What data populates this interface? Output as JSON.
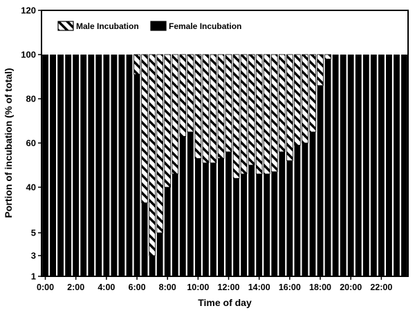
{
  "chart_data": {
    "type": "bar",
    "stacked": true,
    "percent_stacked": true,
    "title": "",
    "xlabel": "Time of day",
    "ylabel": "Portion of incubation (% of total)",
    "ylim": [
      1,
      120
    ],
    "y_ticks": [
      "1",
      "3",
      "5",
      "40",
      "60",
      "80",
      "100",
      "120"
    ],
    "x_ticks": [
      "0:00",
      "2:00",
      "4:00",
      "6:00",
      "8:00",
      "10:00",
      "12:00",
      "14:00",
      "16:00",
      "18:00",
      "20:00",
      "22:00"
    ],
    "grid": false,
    "legend_position": "top-left",
    "x": [
      "0:00",
      "0:30",
      "1:00",
      "1:30",
      "2:00",
      "2:30",
      "3:00",
      "3:30",
      "4:00",
      "4:30",
      "5:00",
      "5:30",
      "6:00",
      "6:30",
      "7:00",
      "7:30",
      "8:00",
      "8:30",
      "9:00",
      "9:30",
      "10:00",
      "10:30",
      "11:00",
      "11:30",
      "12:00",
      "12:30",
      "13:00",
      "13:30",
      "14:00",
      "14:30",
      "15:00",
      "15:30",
      "16:00",
      "16:30",
      "17:00",
      "17:30",
      "18:00",
      "18:30",
      "19:00",
      "19:30",
      "20:00",
      "20:30",
      "21:00",
      "21:30",
      "22:00",
      "22:30",
      "23:00",
      "23:30"
    ],
    "series": [
      {
        "name": "Female Incubation",
        "pattern": "solid",
        "color": "#000000",
        "values": [
          100,
          100,
          100,
          100,
          100,
          100,
          100,
          100,
          100,
          100,
          100,
          100,
          91,
          28,
          3,
          5,
          40,
          46,
          63,
          65,
          53,
          51,
          51,
          53,
          56,
          44,
          46,
          50,
          46,
          46,
          47,
          56,
          52,
          59,
          60,
          65,
          86,
          98,
          100,
          100,
          100,
          100,
          100,
          100,
          100,
          100,
          100,
          100
        ]
      },
      {
        "name": "Male Incubation",
        "pattern": "diagonal-hatch",
        "color": "#ffffff",
        "values": [
          0,
          0,
          0,
          0,
          0,
          0,
          0,
          0,
          0,
          0,
          0,
          0,
          9,
          72,
          97,
          95,
          60,
          54,
          37,
          35,
          47,
          49,
          49,
          47,
          44,
          56,
          54,
          50,
          54,
          54,
          53,
          44,
          48,
          41,
          40,
          35,
          14,
          2,
          0,
          0,
          0,
          0,
          0,
          0,
          0,
          0,
          0,
          0
        ]
      }
    ]
  }
}
